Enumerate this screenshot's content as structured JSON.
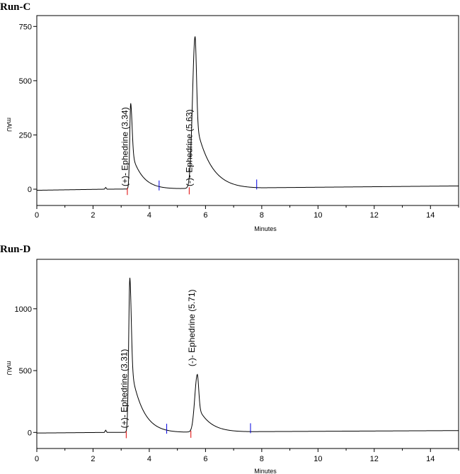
{
  "chart_data": [
    {
      "type": "line",
      "title": "Run-C",
      "xlabel": "Minutes",
      "ylabel": "mAU",
      "xlim": [
        0,
        15
      ],
      "ylim": [
        -75,
        800
      ],
      "xticks": [
        0,
        2,
        4,
        6,
        8,
        10,
        12,
        14
      ],
      "yticks": [
        0,
        250,
        500,
        750
      ],
      "peaks": [
        {
          "label": "(+)- Ephedrine  (3.34)",
          "rt": 3.34,
          "height": 395,
          "rise": 0.05,
          "tail": 1.1,
          "start_marker": 3.22,
          "end_marker": 4.35
        },
        {
          "label": "(-)- Ephedrine  (5.63)",
          "rt": 5.63,
          "height": 700,
          "rise": 0.13,
          "tail": 1.5,
          "start_marker": 5.42,
          "end_marker": 7.82
        }
      ],
      "baseline": {
        "start": -5,
        "end": 15
      },
      "series": [
        {
          "name": "signal",
          "x": [
            0,
            2.4,
            2.45,
            2.5,
            15
          ],
          "y": [
            -5,
            0,
            8,
            0,
            15
          ]
        }
      ]
    },
    {
      "type": "line",
      "title": "Run-D",
      "xlabel": "Minutes",
      "ylabel": "mAU",
      "xlim": [
        0,
        15
      ],
      "ylim": [
        -130,
        1400
      ],
      "xticks": [
        0,
        2,
        4,
        6,
        8,
        10,
        12,
        14
      ],
      "yticks": [
        0,
        500,
        1000
      ],
      "peaks": [
        {
          "label": "(+)- Ephedrine  (3.31)",
          "rt": 3.31,
          "height": 1250,
          "rise": 0.06,
          "tail": 1.2,
          "start_marker": 3.18,
          "end_marker": 4.62
        },
        {
          "label": "(-)- Ephedrine  (5.71)",
          "rt": 5.71,
          "height": 465,
          "rise": 0.13,
          "tail": 1.25,
          "start_marker": 5.48,
          "end_marker": 7.6
        }
      ],
      "baseline": {
        "start": -5,
        "end": 15
      },
      "series": [
        {
          "name": "signal",
          "x": [
            0,
            2.4,
            2.45,
            2.5,
            15
          ],
          "y": [
            -5,
            0,
            18,
            0,
            15
          ]
        }
      ]
    }
  ]
}
